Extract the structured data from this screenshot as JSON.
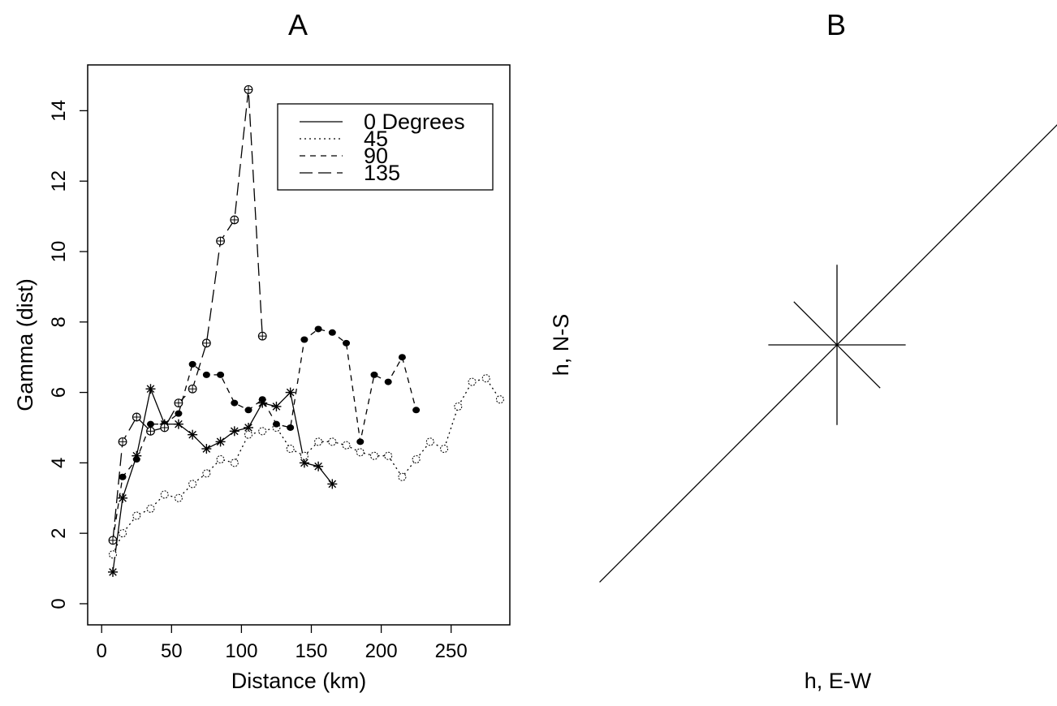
{
  "chart_data": [
    {
      "panel": "A",
      "type": "line",
      "title": "A",
      "xlabel": "Distance (km)",
      "ylabel": "Gamma (dist)",
      "xlim": [
        -10,
        292
      ],
      "ylim": [
        -0.6,
        15.3
      ],
      "xticks": [
        "0",
        "50",
        "100",
        "150",
        "200",
        "250"
      ],
      "yticks": [
        "0",
        "2",
        "4",
        "6",
        "8",
        "10",
        "12",
        "14"
      ],
      "legend_position": "top-right",
      "series": [
        {
          "name": "0 Degrees",
          "linestyle": "solid",
          "marker": "asterisk",
          "x": [
            8,
            15,
            25,
            35,
            45,
            55,
            65,
            75,
            85,
            95,
            105,
            115,
            125,
            135,
            145,
            155,
            165
          ],
          "y": [
            0.9,
            3.0,
            4.2,
            6.1,
            5.1,
            5.1,
            4.8,
            4.4,
            4.6,
            4.9,
            5.0,
            5.7,
            5.6,
            6.0,
            4.0,
            3.9,
            3.4
          ]
        },
        {
          "name": "45",
          "linestyle": "dotted",
          "marker": "open-circle",
          "x": [
            8,
            15,
            25,
            35,
            45,
            55,
            65,
            75,
            85,
            95,
            105,
            115,
            125,
            135,
            145,
            155,
            165,
            175,
            185,
            195,
            205,
            215,
            225,
            235,
            245,
            255,
            265,
            275,
            285
          ],
          "y": [
            1.4,
            2.0,
            2.5,
            2.7,
            3.1,
            3.0,
            3.4,
            3.7,
            4.1,
            4.0,
            4.8,
            4.9,
            5.0,
            4.4,
            4.2,
            4.6,
            4.6,
            4.5,
            4.3,
            4.2,
            4.2,
            3.6,
            4.1,
            4.6,
            4.4,
            5.6,
            6.3,
            6.4,
            5.8
          ]
        },
        {
          "name": "90",
          "linestyle": "short-dash",
          "marker": "filled-circle",
          "x": [
            8,
            15,
            25,
            35,
            45,
            55,
            65,
            75,
            85,
            95,
            105,
            115,
            125,
            135,
            145,
            155,
            165,
            175,
            185,
            195,
            205,
            215,
            225
          ],
          "y": [
            1.8,
            3.6,
            4.1,
            5.1,
            5.1,
            5.4,
            6.8,
            6.5,
            6.5,
            5.7,
            5.5,
            5.8,
            5.1,
            5.0,
            7.5,
            7.8,
            7.7,
            7.4,
            4.6,
            6.5,
            6.3,
            7.0,
            5.5
          ]
        },
        {
          "name": "135",
          "linestyle": "long-dash",
          "marker": "circle-plus",
          "x": [
            8,
            15,
            25,
            35,
            45,
            55,
            65,
            75,
            85,
            95,
            105,
            115
          ],
          "y": [
            1.8,
            4.6,
            5.3,
            4.9,
            5.0,
            5.7,
            6.1,
            7.4,
            10.3,
            10.9,
            14.6,
            7.6
          ]
        }
      ]
    },
    {
      "panel": "B",
      "type": "line",
      "title": "B",
      "xlabel": "h, E-W",
      "ylabel": "h, N-S",
      "description_rays": [
        {
          "dir": "0 Degrees",
          "angle_deg": 0,
          "half_length": 0.9
        },
        {
          "dir": "45",
          "angle_deg": 45,
          "half_length": 4.4
        },
        {
          "dir": "90",
          "angle_deg": 90,
          "half_length": 1.05
        },
        {
          "dir": "135",
          "angle_deg": 135,
          "half_length": 0.8
        }
      ]
    }
  ]
}
